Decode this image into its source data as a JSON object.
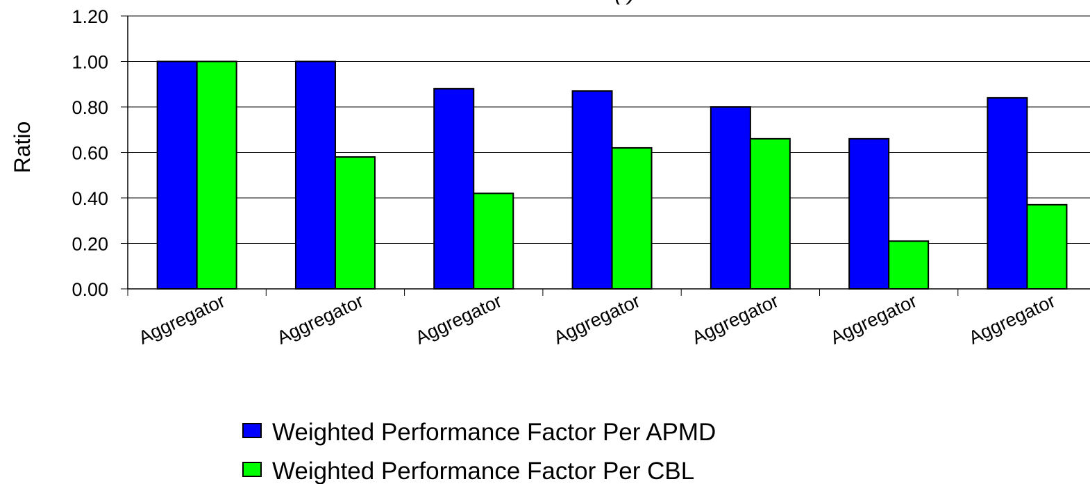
{
  "chart_data": {
    "type": "bar",
    "title": "(                                   )",
    "xlabel": "",
    "ylabel": "Ratio",
    "ylim": [
      0,
      1.2
    ],
    "yticks": [
      "0.00",
      "0.20",
      "0.40",
      "0.60",
      "0.80",
      "1.00",
      "1.20"
    ],
    "ytick_values": [
      0,
      0.2,
      0.4,
      0.6,
      0.8,
      1.0,
      1.2
    ],
    "categories": [
      "Aggregator",
      "Aggregator",
      "Aggregator",
      "Aggregator",
      "Aggregator",
      "Aggregator",
      "Aggregator"
    ],
    "series": [
      {
        "name": "Weighted Performance Factor Per APMD",
        "color": "#0000ff",
        "values": [
          1.0,
          1.0,
          0.88,
          0.87,
          0.8,
          0.66,
          0.84
        ]
      },
      {
        "name": "Weighted Performance Factor  Per CBL",
        "color": "#00ff00",
        "values": [
          1.0,
          0.58,
          0.42,
          0.62,
          0.66,
          0.21,
          0.37
        ]
      }
    ],
    "grid": true,
    "legend_position": "bottom"
  }
}
